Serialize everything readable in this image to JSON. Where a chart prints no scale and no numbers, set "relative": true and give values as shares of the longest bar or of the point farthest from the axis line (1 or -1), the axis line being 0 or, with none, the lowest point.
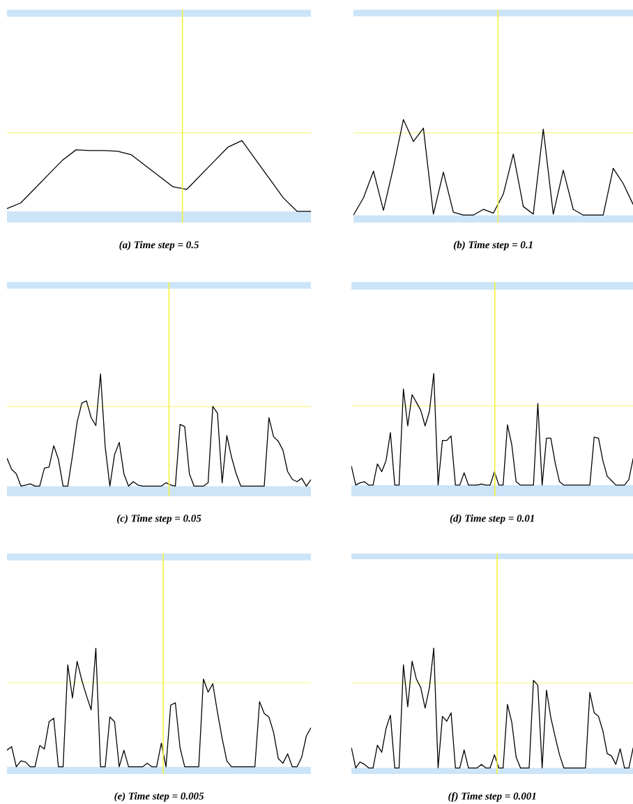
{
  "chart_data": [
    {
      "type": "line",
      "title": "(a) Time step = 0.5",
      "relative": true,
      "color": "#000000",
      "line_style": "solid",
      "categories": [
        null,
        null,
        null,
        null,
        null,
        null,
        null,
        null,
        null,
        null,
        null,
        null,
        null,
        null,
        null,
        null,
        null,
        null,
        null,
        null,
        null,
        null,
        null
      ],
      "values": [
        0.04,
        0.12,
        0.32,
        0.52,
        0.72,
        0.87,
        0.86,
        0.86,
        0.85,
        0.8,
        0.65,
        0.5,
        0.35,
        0.31,
        0.51,
        0.71,
        0.91,
        1,
        0.73,
        0.46,
        0.19,
        0,
        0
      ],
      "ref_lines": [
        {
          "axis": "y",
          "value": 1.11,
          "color": "#f2f23a"
        }
      ],
      "bands": [
        {
          "axis": "y",
          "from": -0.16,
          "to": 0,
          "color": "#cce4f8"
        },
        {
          "axis": "y",
          "from": 2.75,
          "to": 2.85,
          "color": "#cce4f8"
        }
      ]
    },
    {
      "type": "line",
      "title": "(b) Time step = 0.1",
      "relative": true,
      "color": "#000000",
      "line_style": "solid",
      "categories": [
        null,
        null,
        null,
        null,
        null,
        null,
        null,
        null,
        null,
        null,
        null,
        null,
        null,
        null,
        null,
        null,
        null,
        null,
        null,
        null,
        null,
        null,
        null,
        null,
        null,
        null,
        null,
        null,
        null
      ],
      "values": [
        0,
        0.18,
        0.46,
        0.05,
        0.5,
        1,
        0.77,
        0.91,
        0.01,
        0.45,
        0.03,
        0,
        0,
        0.06,
        0.02,
        0.22,
        0.64,
        0.09,
        0.01,
        0.9,
        0.01,
        0.47,
        0.06,
        0,
        0,
        0,
        0.49,
        0.33,
        0.11
      ],
      "ref_lines": [
        {
          "axis": "y",
          "value": 0.86,
          "color": "#f2f23a"
        }
      ],
      "bands": [
        {
          "axis": "y",
          "from": -0.08,
          "to": 0,
          "color": "#cce4f8"
        },
        {
          "axis": "y",
          "from": 2.08,
          "to": 2.15,
          "color": "#cce4f8"
        }
      ]
    },
    {
      "type": "line",
      "title": "(c) Time step = 0.05",
      "relative": true,
      "color": "#000000",
      "line_style": "solid",
      "categories": [
        null,
        null,
        null,
        null,
        null,
        null,
        null,
        null,
        null,
        null,
        null,
        null,
        null,
        null,
        null,
        null,
        null,
        null,
        null,
        null,
        null,
        null,
        null,
        null,
        null,
        null,
        null,
        null,
        null,
        null,
        null,
        null,
        null,
        null,
        null,
        null,
        null,
        null,
        null,
        null,
        null,
        null,
        null,
        null,
        null,
        null,
        null,
        null,
        null,
        null,
        null,
        null,
        null,
        null,
        null,
        null,
        null,
        null,
        null,
        null,
        null,
        null,
        null,
        null,
        null,
        null
      ],
      "values": [
        0.25,
        0.15,
        0.11,
        0,
        0.01,
        0.02,
        0,
        0,
        0.16,
        0.17,
        0.36,
        0.24,
        0,
        0,
        0.27,
        0.57,
        0.74,
        0.76,
        0.61,
        0.54,
        1,
        0.35,
        0,
        0.28,
        0.39,
        0.11,
        0,
        0.04,
        0.01,
        0,
        0,
        0,
        0,
        0,
        0.03,
        0.01,
        0,
        0.55,
        0.53,
        0.11,
        0,
        0,
        0,
        0.03,
        0.71,
        0.65,
        0.03,
        0.45,
        0.26,
        0.11,
        0,
        0,
        0,
        0,
        0,
        0,
        0.61,
        0.44,
        0.4,
        0.32,
        0.13,
        0.06,
        0.04,
        0.07,
        0,
        0.06
      ],
      "ref_lines": [
        {
          "axis": "y",
          "value": 0.71,
          "color": "#f2f23a"
        }
      ],
      "bands": [
        {
          "axis": "y",
          "from": -0.09,
          "to": 0,
          "color": "#cce4f8"
        },
        {
          "axis": "y",
          "from": 1.76,
          "to": 1.82,
          "color": "#cce4f8"
        }
      ]
    },
    {
      "type": "line",
      "title": "(d) Time step = 0.01",
      "relative": true,
      "color": "#000000",
      "line_style": "solid",
      "categories": [
        null,
        null,
        null,
        null,
        null,
        null,
        null,
        null,
        null,
        null,
        null,
        null,
        null,
        null,
        null,
        null,
        null,
        null,
        null,
        null,
        null,
        null,
        null,
        null,
        null,
        null,
        null,
        null,
        null,
        null,
        null,
        null,
        null,
        null,
        null,
        null,
        null,
        null,
        null,
        null,
        null,
        null,
        null,
        null,
        null,
        null,
        null,
        null,
        null,
        null,
        null,
        null,
        null,
        null,
        null,
        null,
        null,
        null,
        null,
        null,
        null,
        null,
        null,
        null,
        null,
        null
      ],
      "values": [
        0.17,
        0,
        0.02,
        0.03,
        0,
        0,
        0.19,
        0.12,
        0.22,
        0.47,
        0,
        0,
        0.86,
        0.53,
        0.81,
        0.74,
        0.67,
        0.53,
        0.66,
        1,
        0,
        0.4,
        0.4,
        0.44,
        0,
        0,
        0.11,
        0,
        0,
        0,
        0.01,
        0,
        0,
        0.12,
        0,
        0,
        0.54,
        0.36,
        0.03,
        0,
        0,
        0,
        0,
        0.73,
        0,
        0.42,
        0.42,
        0.2,
        0.03,
        0,
        0,
        0,
        0,
        0,
        0,
        0,
        0.43,
        0.42,
        0.22,
        0.08,
        0.04,
        0,
        0,
        0,
        0.05,
        0.24
      ],
      "ref_lines": [
        {
          "axis": "y",
          "value": 0.71,
          "color": "#f2f23a"
        }
      ],
      "bands": [
        {
          "axis": "y",
          "from": -0.1,
          "to": 0,
          "color": "#cce4f8"
        },
        {
          "axis": "y",
          "from": 1.75,
          "to": 1.82,
          "color": "#cce4f8"
        }
      ]
    },
    {
      "type": "line",
      "title": "(e) Time step = 0.005",
      "relative": true,
      "color": "#000000",
      "line_style": "solid",
      "categories": [
        null,
        null,
        null,
        null,
        null,
        null,
        null,
        null,
        null,
        null,
        null,
        null,
        null,
        null,
        null,
        null,
        null,
        null,
        null,
        null,
        null,
        null,
        null,
        null,
        null,
        null,
        null,
        null,
        null,
        null,
        null,
        null,
        null,
        null,
        null,
        null,
        null,
        null,
        null,
        null,
        null,
        null,
        null,
        null,
        null,
        null,
        null,
        null,
        null,
        null,
        null,
        null,
        null,
        null,
        null,
        null,
        null,
        null,
        null,
        null,
        null,
        null,
        null,
        null,
        null,
        null
      ],
      "values": [
        0.14,
        0.17,
        0,
        0.05,
        0.04,
        0,
        0,
        0.18,
        0.15,
        0.38,
        0.41,
        0,
        0,
        0.86,
        0.58,
        0.89,
        0.73,
        0.6,
        0.48,
        1,
        0,
        0,
        0.42,
        0.38,
        0,
        0.14,
        0,
        0,
        0,
        0,
        0.03,
        0,
        0,
        0.2,
        0,
        0.52,
        0.54,
        0.16,
        0,
        0,
        0,
        0,
        0.74,
        0.63,
        0.7,
        0.46,
        0.24,
        0.05,
        0,
        0,
        0,
        0,
        0,
        0,
        0.55,
        0.45,
        0.42,
        0.29,
        0.07,
        0.03,
        0.11,
        0,
        0,
        0.08,
        0.26,
        0.33
      ],
      "ref_lines": [
        {
          "axis": "y",
          "value": 0.71,
          "color": "#f2f23a"
        }
      ],
      "bands": [
        {
          "axis": "y",
          "from": -0.06,
          "to": 0,
          "color": "#cce4f8"
        },
        {
          "axis": "y",
          "from": 1.74,
          "to": 1.8,
          "color": "#cce4f8"
        }
      ]
    },
    {
      "type": "line",
      "title": "(f) Time step = 0.001",
      "relative": true,
      "color": "#000000",
      "line_style": "solid",
      "categories": [
        null,
        null,
        null,
        null,
        null,
        null,
        null,
        null,
        null,
        null,
        null,
        null,
        null,
        null,
        null,
        null,
        null,
        null,
        null,
        null,
        null,
        null,
        null,
        null,
        null,
        null,
        null,
        null,
        null,
        null,
        null,
        null,
        null,
        null,
        null,
        null,
        null,
        null,
        null,
        null,
        null,
        null,
        null,
        null,
        null,
        null,
        null,
        null,
        null,
        null,
        null,
        null,
        null,
        null,
        null,
        null,
        null,
        null,
        null,
        null,
        null,
        null,
        null,
        null,
        null,
        null
      ],
      "values": [
        0.17,
        0,
        0.05,
        0.03,
        0,
        0,
        0.19,
        0.13,
        0.33,
        0.44,
        0,
        0,
        0.86,
        0.51,
        0.89,
        0.74,
        0.67,
        0.5,
        0.67,
        1,
        0,
        0.43,
        0.39,
        0.46,
        0,
        0,
        0.15,
        0,
        0,
        0,
        0.03,
        0,
        0,
        0.11,
        0,
        0,
        0.53,
        0.38,
        0.09,
        0,
        0,
        0,
        0.73,
        0.69,
        0,
        0.65,
        0.42,
        0.26,
        0.11,
        0,
        0,
        0,
        0,
        0,
        0,
        0.63,
        0.46,
        0.43,
        0.31,
        0.12,
        0.1,
        0.03,
        0.16,
        0,
        0,
        0.17
      ],
      "ref_lines": [
        {
          "axis": "y",
          "value": 0.71,
          "color": "#f2f23a"
        }
      ],
      "bands": [
        {
          "axis": "y",
          "from": -0.05,
          "to": 0,
          "color": "#cce4f8"
        },
        {
          "axis": "y",
          "from": 1.74,
          "to": 1.79,
          "color": "#cce4f8"
        }
      ]
    }
  ]
}
